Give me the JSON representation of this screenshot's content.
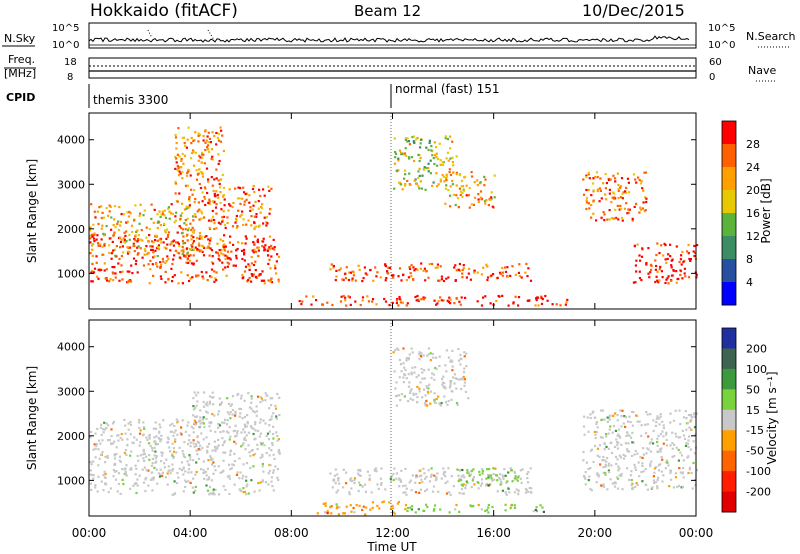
{
  "header": {
    "station": "Hokkaido (fitACF)",
    "beam": "Beam 12",
    "date": "10/Dec/2015"
  },
  "aux_panels": {
    "nsky_label": "N.Sky",
    "nsearch_label": "N.Search",
    "noise_ticks_left": [
      "10^5",
      "10^0"
    ],
    "noise_ticks_right": [
      "10^5",
      "10^0"
    ],
    "freq_label": "Freq.",
    "freq_unit": "[MHz]",
    "freq_ticks": [
      "18",
      "8"
    ],
    "nave_label": "Nave",
    "nave_ticks": [
      "60",
      "0"
    ],
    "cpid_label": "CPID",
    "cpid_modes": [
      {
        "name": "themis 3300",
        "start_hour": 0
      },
      {
        "name": "normal (fast) 151",
        "start_hour": 12
      }
    ]
  },
  "chart_data": [
    {
      "type": "heatmap",
      "panel": "power",
      "ylabel": "Slant Range [km]",
      "xlabel": "",
      "ylim": [
        200,
        4600
      ],
      "yticks": [
        "1000",
        "2000",
        "3000",
        "4000"
      ],
      "xlim_hours": [
        0,
        24
      ],
      "xticks": [
        "00:00",
        "04:00",
        "08:00",
        "12:00",
        "16:00",
        "20:00",
        "00:00"
      ],
      "colorbar": {
        "label": "Power [dB]",
        "ticks": [
          "28",
          "24",
          "20",
          "16",
          "12",
          "8",
          "4"
        ],
        "range": [
          0,
          30
        ],
        "colors": [
          "#ff0000",
          "#ff6000",
          "#ffa000",
          "#e8c800",
          "#5ab43c",
          "#3c8c64",
          "#2850a0",
          "#0000ff"
        ]
      },
      "regions": [
        {
          "h0": 0.0,
          "h1": 7.5,
          "r0": 800,
          "r1": 1900,
          "value": 27
        },
        {
          "h0": 0.0,
          "h1": 4.5,
          "r0": 1400,
          "r1": 2600,
          "value": 20
        },
        {
          "h0": 4.5,
          "h1": 7.2,
          "r0": 2000,
          "r1": 3000,
          "value": 24
        },
        {
          "h0": 3.3,
          "h1": 5.3,
          "r0": 2600,
          "r1": 4300,
          "value": 22
        },
        {
          "h0": 9.5,
          "h1": 17.5,
          "r0": 850,
          "r1": 1250,
          "value": 26
        },
        {
          "h0": 8.0,
          "h1": 19.0,
          "r0": 300,
          "r1": 520,
          "value": 28
        },
        {
          "h0": 12.0,
          "h1": 14.5,
          "r0": 2900,
          "r1": 4100,
          "value": 16
        },
        {
          "h0": 14.0,
          "h1": 16.0,
          "r0": 2500,
          "r1": 3300,
          "value": 20
        },
        {
          "h0": 19.5,
          "h1": 22.0,
          "r0": 2200,
          "r1": 3300,
          "value": 23
        },
        {
          "h0": 21.5,
          "h1": 24.0,
          "r0": 800,
          "r1": 1700,
          "value": 28
        }
      ]
    },
    {
      "type": "heatmap",
      "panel": "velocity",
      "ylabel": "Slant Range [km]",
      "xlabel": "Time UT",
      "ylim": [
        200,
        4600
      ],
      "yticks": [
        "1000",
        "2000",
        "3000",
        "4000"
      ],
      "xlim_hours": [
        0,
        24
      ],
      "xticks": [
        "00:00",
        "04:00",
        "08:00",
        "12:00",
        "16:00",
        "20:00",
        "00:00"
      ],
      "colorbar": {
        "label": "Velocity [m s⁻¹]",
        "ticks": [
          "200",
          "100",
          "50",
          "15",
          "-15",
          "-50",
          "-100",
          "-200"
        ],
        "range": [
          -250,
          250
        ],
        "colors": [
          "#2030a0",
          "#3c6450",
          "#3c9a3c",
          "#7ad23c",
          "#c8c8c8",
          "#ffa000",
          "#ff6400",
          "#ff1e00",
          "#e00000"
        ]
      },
      "regions": [
        {
          "h0": 0.0,
          "h1": 7.5,
          "r0": 700,
          "r1": 2400,
          "value": 0
        },
        {
          "h0": 4.0,
          "h1": 7.5,
          "r0": 2200,
          "r1": 3000,
          "value": 0
        },
        {
          "h0": 9.5,
          "h1": 17.5,
          "r0": 700,
          "r1": 1300,
          "value": 0
        },
        {
          "h0": 14.5,
          "h1": 17.0,
          "r0": 900,
          "r1": 1300,
          "value": 60
        },
        {
          "h0": 9.0,
          "h1": 12.5,
          "r0": 250,
          "r1": 550,
          "value": -60
        },
        {
          "h0": 12.0,
          "h1": 15.0,
          "r0": 2700,
          "r1": 4000,
          "value": 0
        },
        {
          "h0": 19.5,
          "h1": 24.0,
          "r0": 800,
          "r1": 2600,
          "value": 0
        },
        {
          "h0": 12.5,
          "h1": 18.0,
          "r0": 300,
          "r1": 480,
          "value": 40
        }
      ]
    }
  ]
}
